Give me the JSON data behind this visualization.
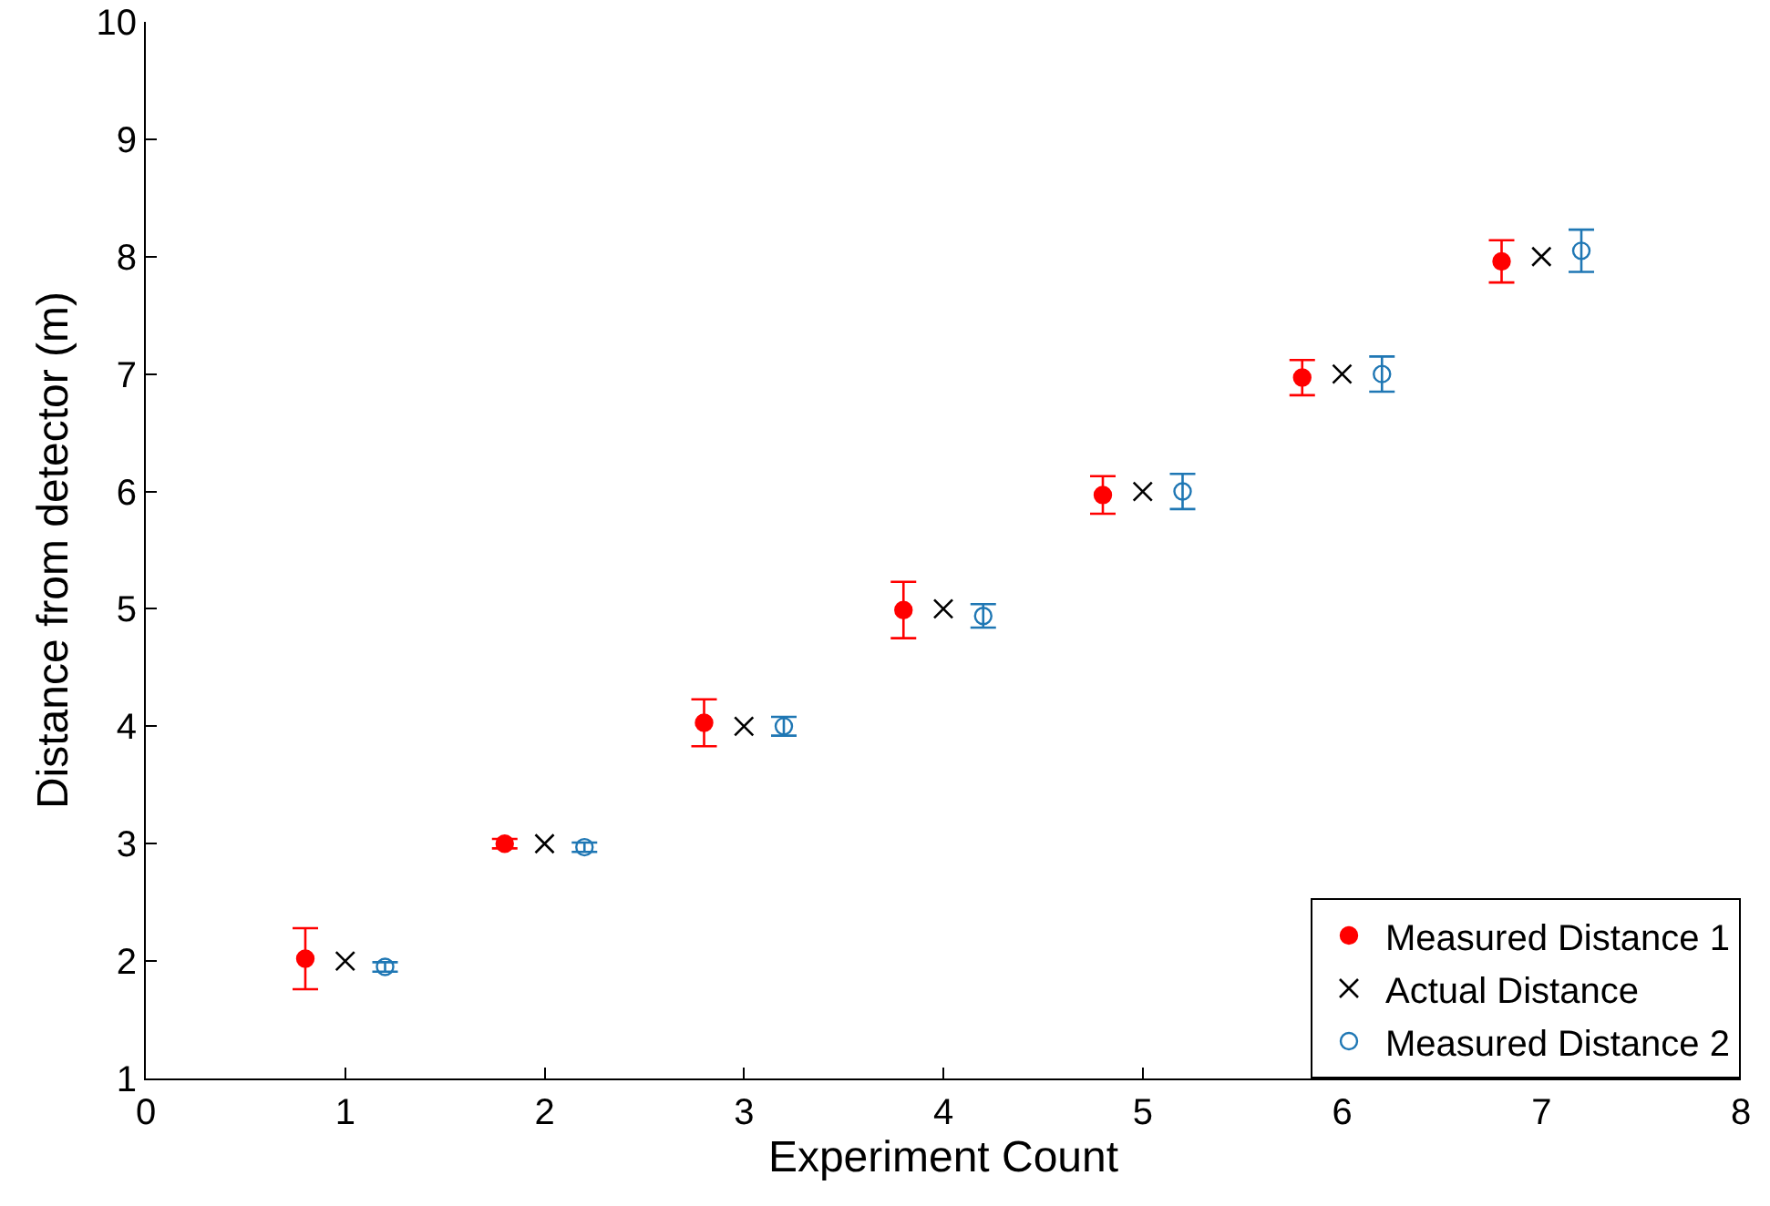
{
  "chart_data": {
    "type": "scatter",
    "xlabel": "Experiment Count",
    "ylabel": "Distance from detector (m)",
    "xlim": [
      0,
      8
    ],
    "xticks": [
      0,
      1,
      2,
      3,
      4,
      5,
      6,
      7,
      8
    ],
    "ylim": [
      1,
      10
    ],
    "yticks": [
      1,
      2,
      3,
      4,
      5,
      6,
      7,
      8,
      9,
      10
    ],
    "grid": false,
    "legend": "bottom right",
    "series": [
      {
        "name": "Measured Distance 1",
        "color": "#ff0000",
        "marker": "circle",
        "x": [
          0.8,
          1.8,
          2.8,
          3.8,
          4.8,
          5.8,
          6.8
        ],
        "values": [
          2.02,
          3.0,
          4.03,
          4.99,
          5.97,
          6.97,
          7.96
        ],
        "errors": [
          0.26,
          0.04,
          0.2,
          0.24,
          0.16,
          0.15,
          0.18
        ]
      },
      {
        "name": "Actual Distance",
        "color": "#000000",
        "marker": "cross",
        "x": [
          1,
          2,
          3,
          4,
          5,
          6,
          7
        ],
        "values": [
          2,
          3,
          4,
          5,
          6,
          7,
          8
        ]
      },
      {
        "name": "Measured Distance 2",
        "color": "#1f77b4",
        "marker": "circle-open",
        "x": [
          1.2,
          2.2,
          3.2,
          4.2,
          5.2,
          6.2,
          7.2
        ],
        "values": [
          1.95,
          2.97,
          4.0,
          4.94,
          6.0,
          7.0,
          8.05
        ],
        "errors": [
          0.04,
          0.04,
          0.08,
          0.1,
          0.15,
          0.15,
          0.18
        ]
      }
    ]
  }
}
